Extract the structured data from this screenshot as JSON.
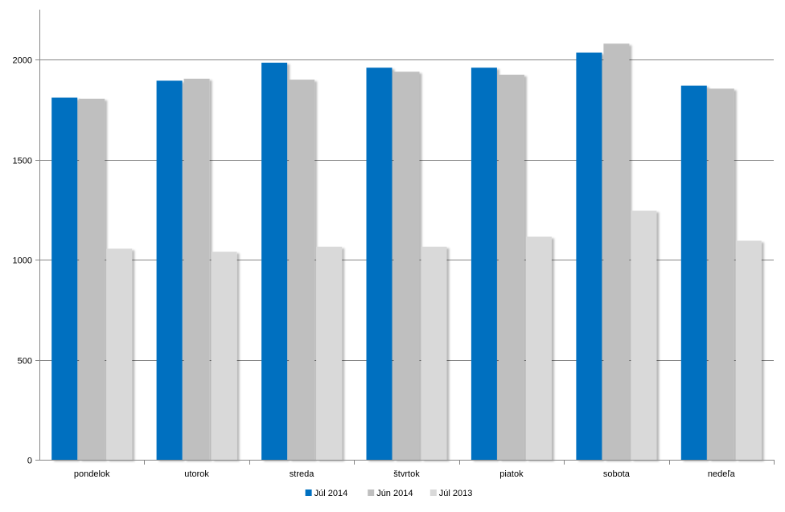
{
  "chart_data": {
    "type": "bar",
    "categories": [
      "pondelok",
      "utorok",
      "streda",
      "štvrtok",
      "piatok",
      "sobota",
      "nedeľa"
    ],
    "series": [
      {
        "name": "Júl 2014",
        "color": "#0070C0",
        "values": [
          1810,
          1895,
          1985,
          1960,
          1960,
          2035,
          1870
        ]
      },
      {
        "name": "Jún 2014",
        "color": "#BFBFBF",
        "values": [
          1805,
          1905,
          1900,
          1940,
          1925,
          2080,
          1855
        ]
      },
      {
        "name": "Júl 2013",
        "color": "#D9D9D9",
        "values": [
          1055,
          1040,
          1065,
          1065,
          1115,
          1245,
          1095
        ]
      }
    ],
    "y_ticks": [
      0,
      500,
      1000,
      1500,
      2000
    ],
    "y_tick_labels": [
      "0",
      "500",
      "1000",
      "1500",
      "2000"
    ],
    "ylim": [
      0,
      2250
    ],
    "grid": true,
    "legend_position": "bottom",
    "title": "",
    "xlabel": "",
    "ylabel": ""
  }
}
